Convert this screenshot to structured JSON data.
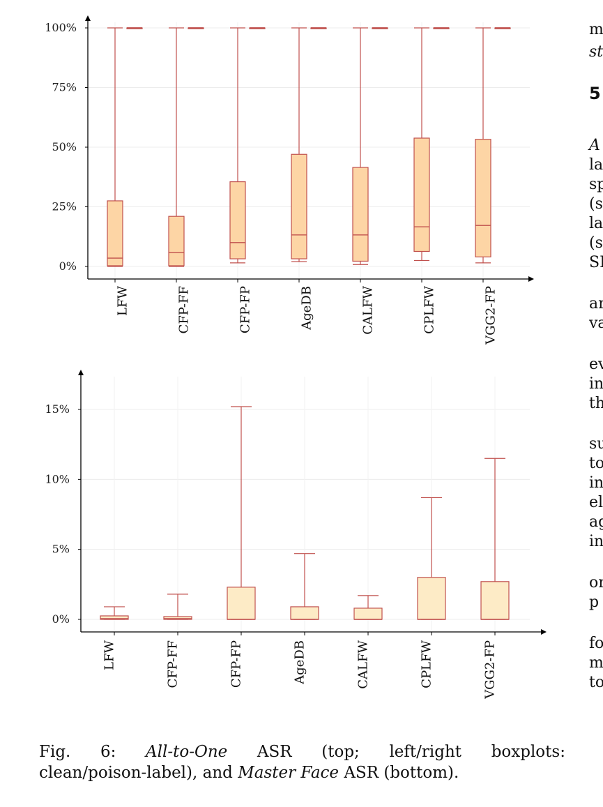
{
  "chart_data": [
    {
      "type": "boxplot",
      "categories": [
        "LFW",
        "CFP-FF",
        "CFP-FP",
        "AgeDB",
        "CALFW",
        "CPLFW",
        "VGG2-FP"
      ],
      "yticks": [
        "0%",
        "25%",
        "50%",
        "75%",
        "100%"
      ],
      "ylim": [
        -5,
        107
      ],
      "grid": true,
      "colors": {
        "box_fill": "#fdd5a5",
        "stroke": "#c0504d"
      },
      "series": [
        {
          "boxes": [
            {
              "min": 0,
              "q1": 0.3,
              "median": 3.5,
              "q3": 27.5,
              "max": 100
            },
            {
              "min": 0,
              "q1": 0.3,
              "median": 5.8,
              "q3": 21,
              "max": 100
            },
            {
              "min": 1.5,
              "q1": 3.2,
              "median": 10,
              "q3": 35.5,
              "max": 100
            },
            {
              "min": 2,
              "q1": 3.2,
              "median": 13.2,
              "q3": 47,
              "max": 100
            },
            {
              "min": 0.8,
              "q1": 2.2,
              "median": 13.2,
              "q3": 41.5,
              "max": 100
            },
            {
              "min": 2.5,
              "q1": 6.3,
              "median": 16.6,
              "q3": 53.8,
              "max": 100
            },
            {
              "min": 1.5,
              "q1": 4,
              "median": 17.2,
              "q3": 53.3,
              "max": 100
            }
          ]
        },
        {
          "boxes": [
            {
              "min": 100,
              "q1": 100,
              "median": 100,
              "q3": 100,
              "max": 100
            },
            {
              "min": 100,
              "q1": 100,
              "median": 100,
              "q3": 100,
              "max": 100
            },
            {
              "min": 100,
              "q1": 100,
              "median": 100,
              "q3": 100,
              "max": 100
            },
            {
              "min": 100,
              "q1": 100,
              "median": 100,
              "q3": 100,
              "max": 100
            },
            {
              "min": 100,
              "q1": 100,
              "median": 100,
              "q3": 100,
              "max": 100
            },
            {
              "min": 100,
              "q1": 100,
              "median": 100,
              "q3": 100,
              "max": 100
            },
            {
              "min": 100,
              "q1": 100,
              "median": 100,
              "q3": 100,
              "max": 100
            }
          ]
        }
      ]
    },
    {
      "type": "boxplot",
      "categories": [
        "LFW",
        "CFP-FF",
        "CFP-FP",
        "AgeDB",
        "CALFW",
        "CPLFW",
        "VGG2-FP"
      ],
      "yticks": [
        "0%",
        "5%",
        "10%",
        "15%"
      ],
      "ylim": [
        -0.8,
        16.4
      ],
      "grid": true,
      "colors": {
        "box_fill": "#fdebc6",
        "stroke": "#c0504d"
      },
      "series": [
        {
          "boxes": [
            {
              "min": 0,
              "q1": 0,
              "median": 0.05,
              "q3": 0.25,
              "max": 0.9
            },
            {
              "min": 0,
              "q1": 0,
              "median": 0.05,
              "q3": 0.2,
              "max": 1.8
            },
            {
              "min": 0,
              "q1": 0,
              "median": 0,
              "q3": 2.3,
              "max": 15.2
            },
            {
              "min": 0,
              "q1": 0,
              "median": 0,
              "q3": 0.9,
              "max": 4.7
            },
            {
              "min": 0,
              "q1": 0,
              "median": 0,
              "q3": 0.8,
              "max": 1.7
            },
            {
              "min": 0,
              "q1": 0,
              "median": 0,
              "q3": 3.0,
              "max": 8.7
            },
            {
              "min": 0,
              "q1": 0,
              "median": 0,
              "q3": 2.7,
              "max": 11.5
            }
          ]
        }
      ]
    }
  ],
  "caption": {
    "label": "Fig.",
    "number": "6:",
    "term1": "All-to-One",
    "asr1": "ASR",
    "part1": "(top;",
    "part2": "left/right",
    "part3": "boxplots:",
    "line2_a": "clean/poison-label), and ",
    "term2": "Master Face",
    "line2_b": " ASR (bottom)."
  },
  "side_text": [
    {
      "text": "m",
      "style": "normal"
    },
    {
      "text": "st",
      "style": "italic"
    },
    {
      "text": "5",
      "style": "bold"
    },
    {
      "text": "A",
      "style": "italic"
    },
    {
      "text": "la",
      "style": "normal"
    },
    {
      "text": "sp",
      "style": "normal"
    },
    {
      "text": "(s",
      "style": "normal"
    },
    {
      "text": "la",
      "style": "normal"
    },
    {
      "text": "(s",
      "style": "normal"
    },
    {
      "text": "SI",
      "style": "normal"
    },
    {
      "text": "ar",
      "style": "normal"
    },
    {
      "text": "va",
      "style": "normal"
    },
    {
      "text": "ev",
      "style": "normal"
    },
    {
      "text": "in",
      "style": "normal"
    },
    {
      "text": "th",
      "style": "normal"
    },
    {
      "text": "su",
      "style": "normal"
    },
    {
      "text": "to",
      "style": "normal"
    },
    {
      "text": "in",
      "style": "normal"
    },
    {
      "text": "el",
      "style": "normal"
    },
    {
      "text": "ag",
      "style": "normal"
    },
    {
      "text": "in",
      "style": "normal"
    },
    {
      "text": "or",
      "style": "normal"
    },
    {
      "text": "p",
      "style": "normal"
    },
    {
      "text": "fo",
      "style": "normal"
    },
    {
      "text": "m",
      "style": "normal"
    },
    {
      "text": "to",
      "style": "normal"
    }
  ]
}
